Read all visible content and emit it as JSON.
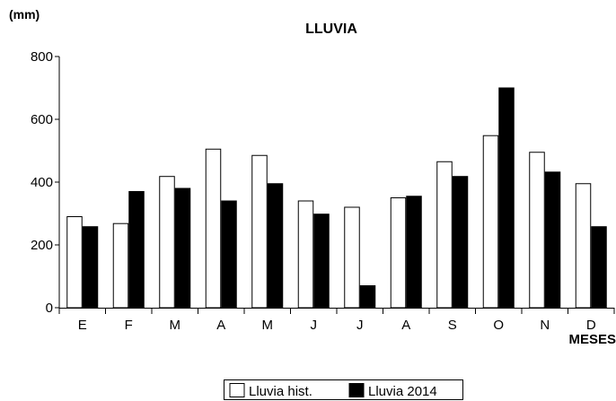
{
  "chart_data": {
    "type": "bar",
    "title": "LLUVIA",
    "unit_label": "(mm)",
    "xlabel": "MESES",
    "ylabel": "",
    "ylim": [
      0,
      800
    ],
    "yticks": [
      0,
      200,
      400,
      600,
      800
    ],
    "grid": false,
    "legend_position": "bottom-center",
    "categories": [
      "E",
      "F",
      "M",
      "A",
      "M",
      "J",
      "J",
      "A",
      "S",
      "O",
      "N",
      "D"
    ],
    "series": [
      {
        "name": "Lluvia hist.",
        "color": "#ffffff",
        "values": [
          290,
          268,
          418,
          505,
          485,
          340,
          320,
          350,
          465,
          548,
          495,
          395
        ]
      },
      {
        "name": "Lluvia 2014",
        "color": "#000000",
        "values": [
          258,
          370,
          380,
          340,
          395,
          298,
          70,
          355,
          418,
          700,
          432,
          258
        ]
      }
    ]
  }
}
